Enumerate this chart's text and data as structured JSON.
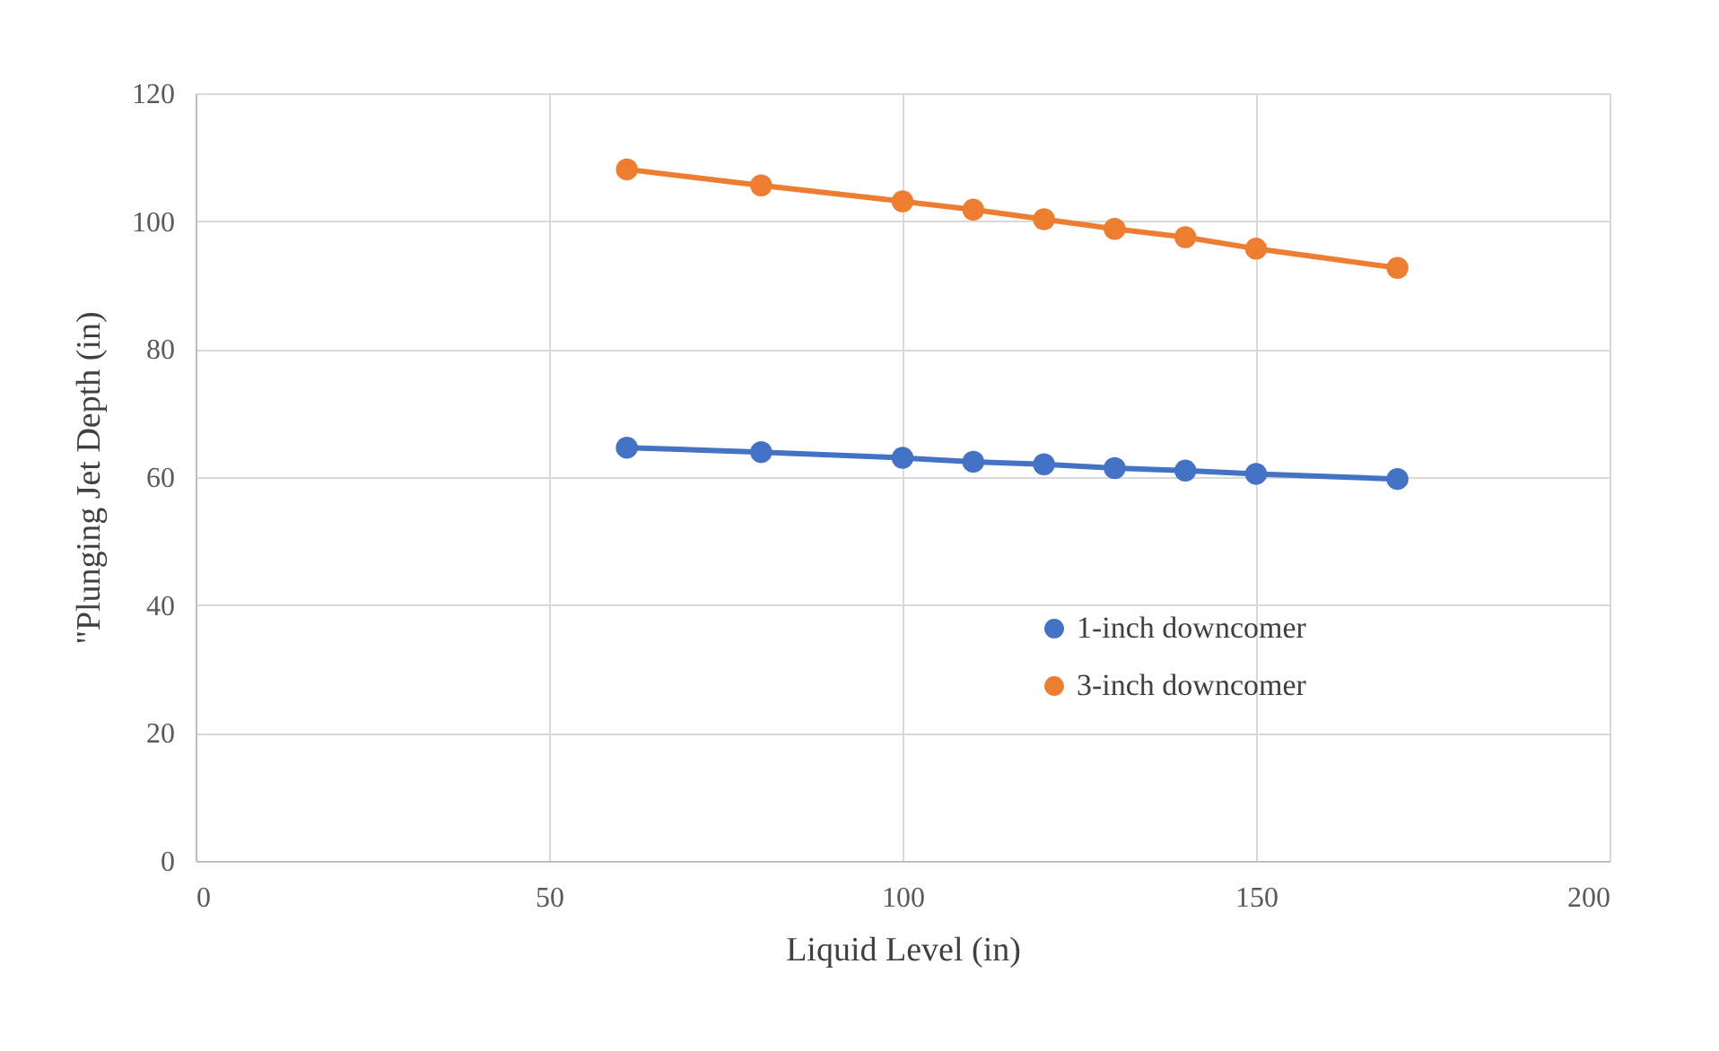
{
  "chart_data": {
    "type": "line",
    "xlabel": "Liquid Level (in)",
    "ylabel": "\"Plunging Jet Depth (in)",
    "x": [
      61,
      80,
      100,
      110,
      120,
      130,
      140,
      150,
      170
    ],
    "series": [
      {
        "name": "1-inch downcomer",
        "color": "#4472c4",
        "values": [
          64.6,
          63.9,
          63.0,
          62.4,
          62.0,
          61.4,
          61.0,
          60.5,
          59.7
        ]
      },
      {
        "name": "3-inch downcomer",
        "color": "#ed7d31",
        "values": [
          108.1,
          105.6,
          103.1,
          101.8,
          100.3,
          98.8,
          97.5,
          95.7,
          92.7
        ]
      }
    ],
    "xlim": [
      0,
      200
    ],
    "xticks": [
      0,
      50,
      100,
      150,
      200
    ],
    "ylim": [
      0,
      120
    ],
    "yticks": [
      0,
      20,
      40,
      60,
      80,
      100,
      120
    ],
    "grid": true,
    "legend": "bottom right",
    "marker": "circle",
    "line_style": "solid"
  }
}
